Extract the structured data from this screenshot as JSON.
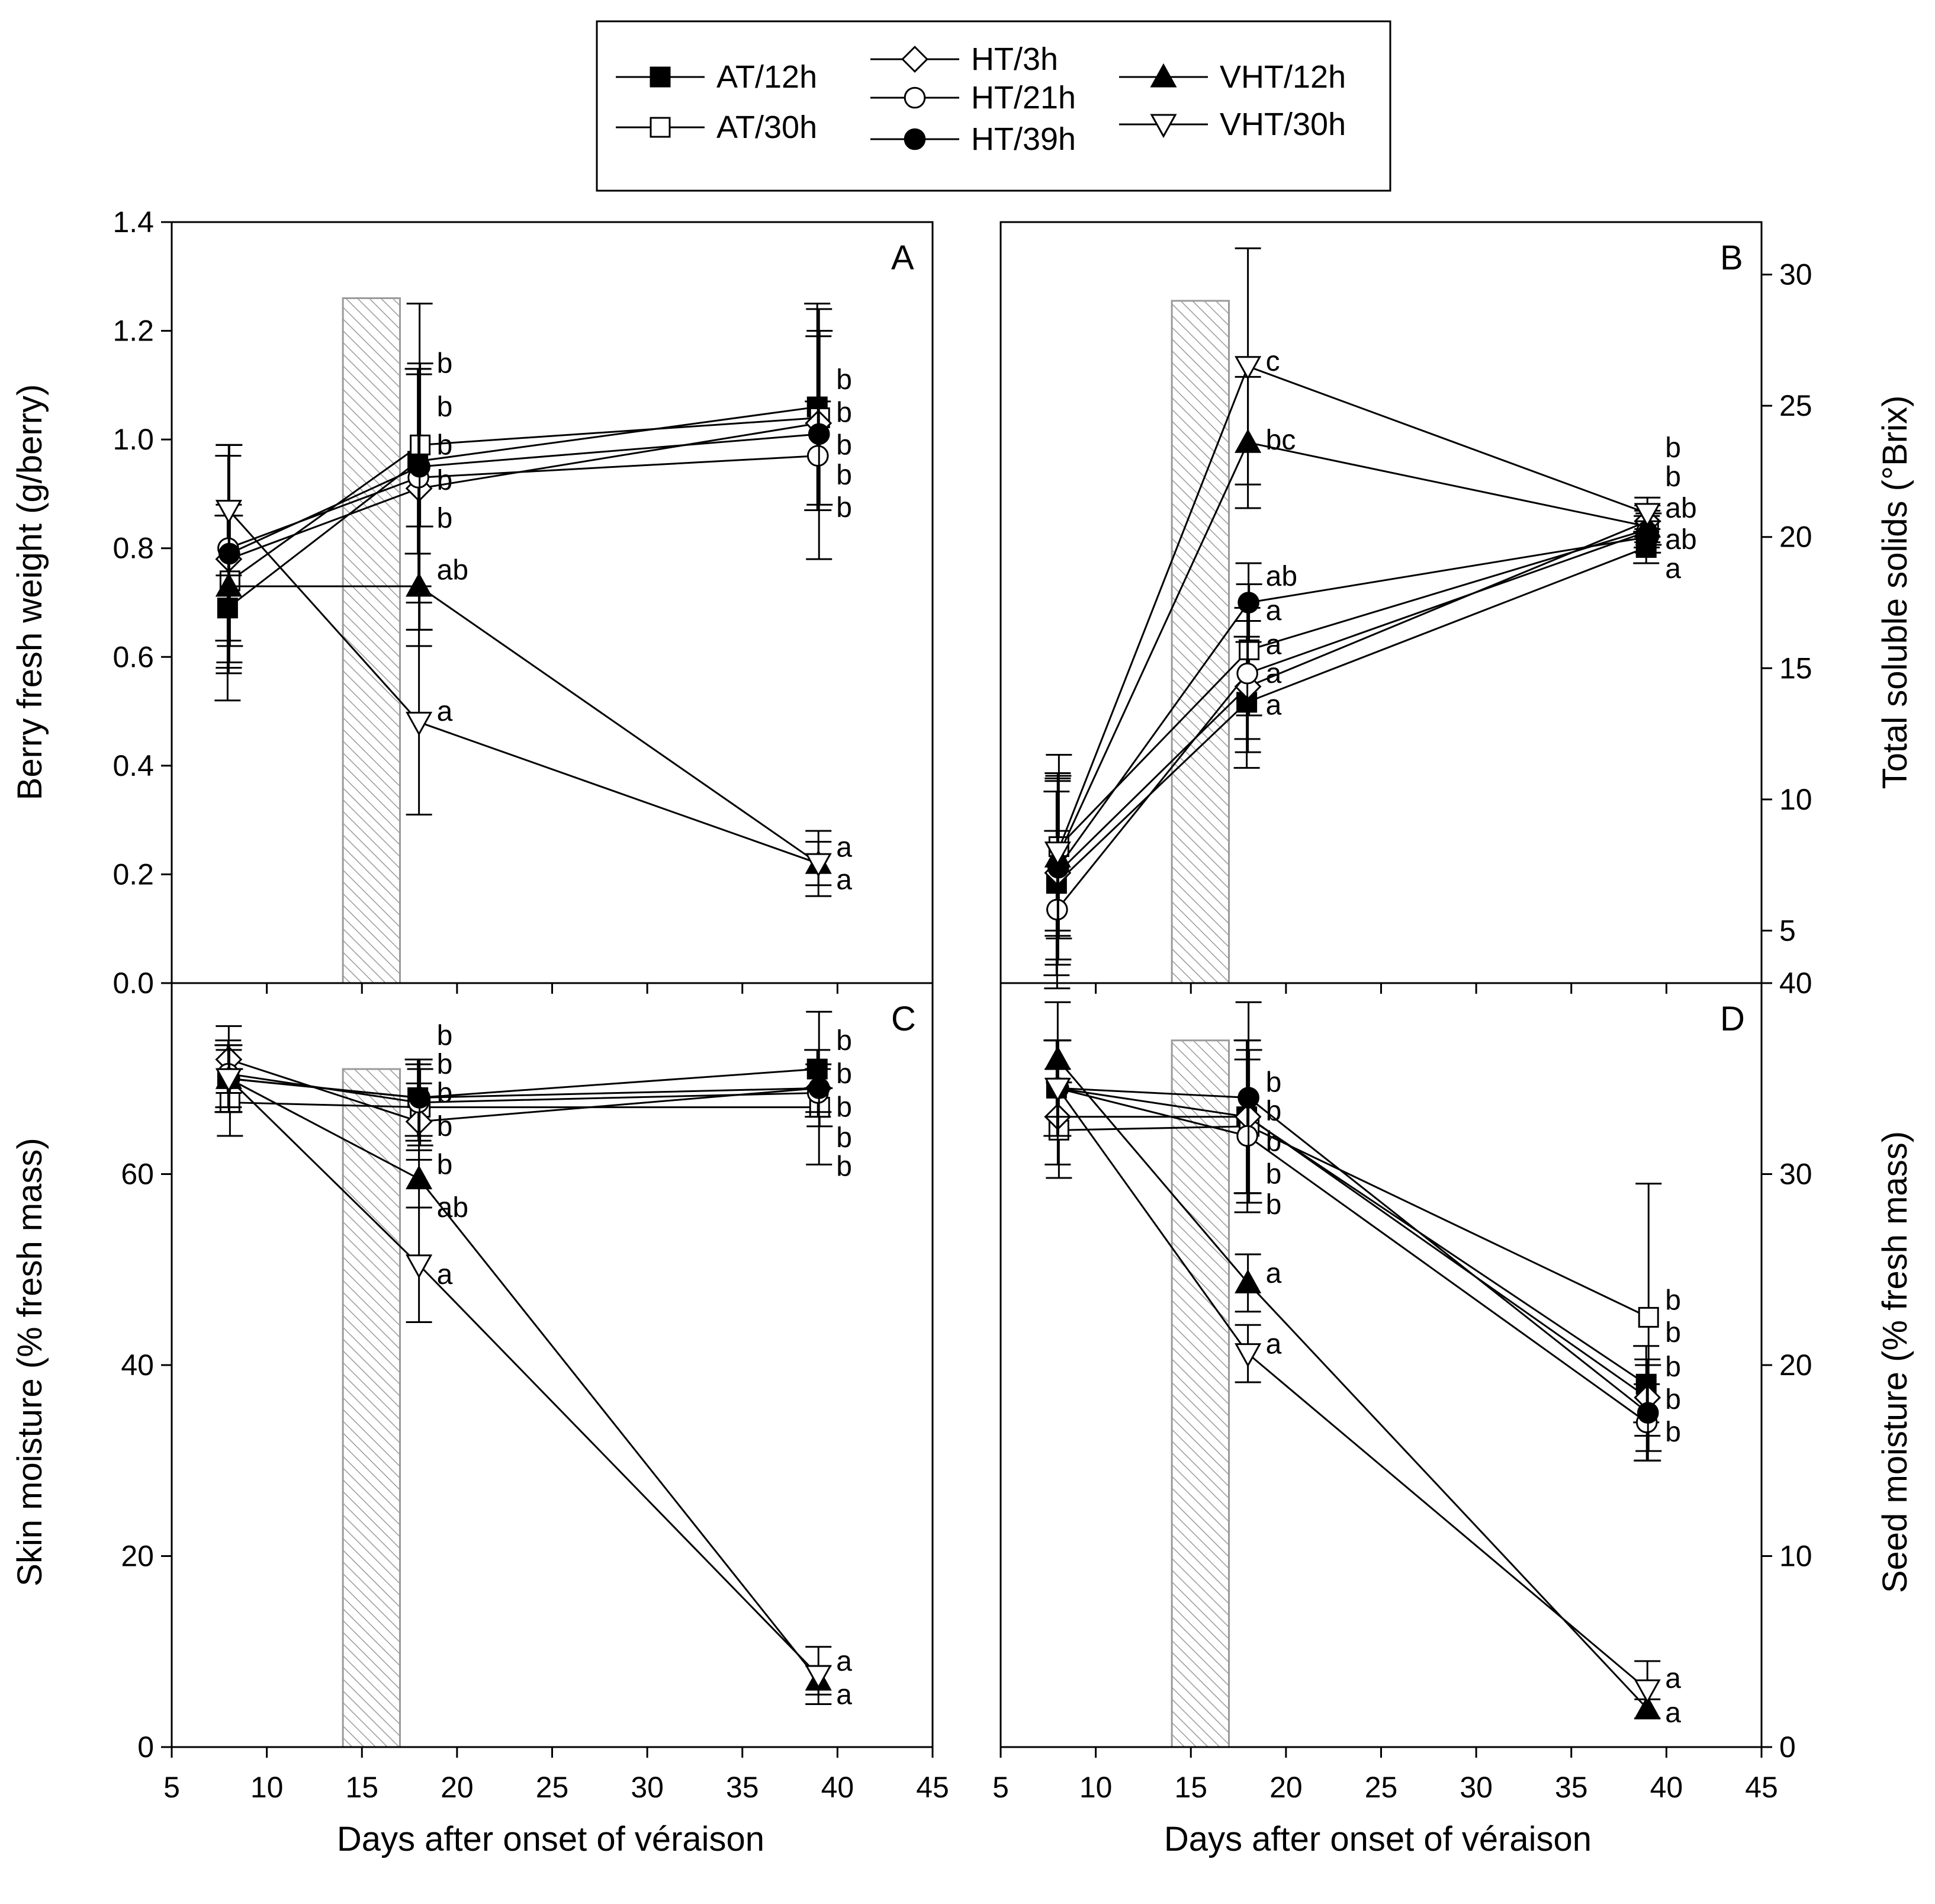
{
  "colors": {
    "ink": "#000000",
    "shade_stroke": "#9a9a9a",
    "background": "#ffffff"
  },
  "legend": [
    {
      "label": "AT/12h",
      "marker": "square",
      "filled": true
    },
    {
      "label": "AT/30h",
      "marker": "square",
      "filled": false
    },
    {
      "label": "HT/3h",
      "marker": "diamond",
      "filled": false
    },
    {
      "label": "HT/21h",
      "marker": "circle",
      "filled": false
    },
    {
      "label": "HT/39h",
      "marker": "circle",
      "filled": true
    },
    {
      "label": "VHT/12h",
      "marker": "triangle-up",
      "filled": true
    },
    {
      "label": "VHT/30h",
      "marker": "triangle-down",
      "filled": false
    }
  ],
  "shared_xlabel": "Days after onset of véraison",
  "chart_data": [
    {
      "panel": "A",
      "type": "line",
      "ylabel": "Berry fresh weight (g/berry)",
      "y_axis_side": "left",
      "xlim": [
        5,
        45
      ],
      "ylim": [
        0,
        1.4
      ],
      "xticks": [],
      "yticks": [
        "0.0",
        "0.2",
        "0.4",
        "0.6",
        "0.8",
        "1.0",
        "1.2",
        "1.4"
      ],
      "treatment_band": {
        "x0": 14,
        "x1": 17,
        "y_top": 1.26
      },
      "x": [
        8,
        18,
        39
      ],
      "series": [
        {
          "name": "AT/12h",
          "values": [
            0.69,
            0.96,
            1.06
          ],
          "err": [
            0.17,
            0.17,
            0.19
          ]
        },
        {
          "name": "AT/30h",
          "values": [
            0.74,
            0.99,
            1.04
          ],
          "err": [
            0.12,
            0.15,
            0.16
          ]
        },
        {
          "name": "HT/3h",
          "values": [
            0.78,
            0.91,
            1.03
          ],
          "err": [
            0.21,
            0.21,
            0.16
          ]
        },
        {
          "name": "HT/21h",
          "values": [
            0.8,
            0.93,
            0.97
          ],
          "err": [
            0.17,
            0.2,
            0.1
          ]
        },
        {
          "name": "HT/39h",
          "values": [
            0.79,
            0.95,
            1.01
          ],
          "err": [
            0.2,
            0.3,
            0.23
          ]
        },
        {
          "name": "VHT/12h",
          "values": [
            0.73,
            0.73,
            0.22
          ],
          "err": [
            0.15,
            0.11,
            0.04
          ]
        },
        {
          "name": "VHT/30h",
          "values": [
            0.87,
            0.48,
            0.22
          ],
          "err": [
            0.12,
            0.17,
            0.06
          ]
        }
      ],
      "annotations": [
        {
          "x": 18,
          "y": 1.14,
          "text": "b"
        },
        {
          "x": 18,
          "y": 1.06,
          "text": "b"
        },
        {
          "x": 18,
          "y": 0.99,
          "text": "b"
        },
        {
          "x": 18,
          "y": 0.925,
          "text": "b"
        },
        {
          "x": 18,
          "y": 0.855,
          "text": "b"
        },
        {
          "x": 18,
          "y": 0.76,
          "text": "ab"
        },
        {
          "x": 18,
          "y": 0.5,
          "text": "a"
        },
        {
          "x": 39,
          "y": 1.11,
          "text": "b"
        },
        {
          "x": 39,
          "y": 1.05,
          "text": "b"
        },
        {
          "x": 39,
          "y": 0.99,
          "text": "b"
        },
        {
          "x": 39,
          "y": 0.935,
          "text": "b"
        },
        {
          "x": 39,
          "y": 0.875,
          "text": "b"
        },
        {
          "x": 39,
          "y": 0.25,
          "text": "a"
        },
        {
          "x": 39,
          "y": 0.19,
          "text": "a"
        }
      ]
    },
    {
      "panel": "B",
      "type": "line",
      "ylabel": "Total soluble solids (°Brix)",
      "y_axis_side": "right",
      "xlim": [
        5,
        45
      ],
      "ylim": [
        3,
        32
      ],
      "xticks": [],
      "yticks": [
        "5",
        "10",
        "15",
        "20",
        "25",
        "30"
      ],
      "treatment_band": {
        "x0": 14,
        "x1": 17,
        "y_top": 29.0
      },
      "x": [
        8,
        18,
        39
      ],
      "series": [
        {
          "name": "AT/12h",
          "values": [
            6.8,
            13.7,
            19.6
          ],
          "err": [
            3.5,
            2.5,
            0.6
          ]
        },
        {
          "name": "AT/30h",
          "values": [
            8.2,
            15.7,
            20.3
          ],
          "err": [
            3.5,
            2.5,
            0.6
          ]
        },
        {
          "name": "HT/3h",
          "values": [
            7.2,
            14.3,
            20.6
          ],
          "err": [
            3.5,
            2.5,
            0.6
          ]
        },
        {
          "name": "HT/21h",
          "values": [
            5.8,
            14.8,
            20.2
          ],
          "err": [
            3.0,
            2.5,
            0.6
          ]
        },
        {
          "name": "HT/39h",
          "values": [
            7.4,
            17.5,
            20.0
          ],
          "err": [
            3.5,
            1.5,
            0.6
          ]
        },
        {
          "name": "VHT/12h",
          "values": [
            7.8,
            23.6,
            20.4
          ],
          "err": [
            3.0,
            2.5,
            0.6
          ]
        },
        {
          "name": "VHT/30h",
          "values": [
            8.0,
            26.5,
            20.9
          ],
          "err": [
            3.0,
            4.5,
            0.6
          ]
        }
      ],
      "annotations": [
        {
          "x": 18,
          "y": 26.7,
          "text": "c"
        },
        {
          "x": 18,
          "y": 23.7,
          "text": "bc"
        },
        {
          "x": 18,
          "y": 18.5,
          "text": "ab"
        },
        {
          "x": 18,
          "y": 17.2,
          "text": "a"
        },
        {
          "x": 18,
          "y": 15.9,
          "text": "a"
        },
        {
          "x": 18,
          "y": 14.8,
          "text": "a"
        },
        {
          "x": 18,
          "y": 13.6,
          "text": "a"
        },
        {
          "x": 39,
          "y": 23.4,
          "text": "b"
        },
        {
          "x": 39,
          "y": 22.3,
          "text": "b"
        },
        {
          "x": 39,
          "y": 21.1,
          "text": "ab"
        },
        {
          "x": 39,
          "y": 19.9,
          "text": "ab"
        },
        {
          "x": 39,
          "y": 18.8,
          "text": "a"
        }
      ]
    },
    {
      "panel": "C",
      "type": "line",
      "ylabel": "Skin moisture (% fresh mass)",
      "y_axis_side": "left",
      "xlim": [
        5,
        45
      ],
      "ylim": [
        0,
        80
      ],
      "xticks": [
        "5",
        "10",
        "15",
        "20",
        "25",
        "30",
        "35",
        "40",
        "45"
      ],
      "yticks": [
        "0",
        "20",
        "40",
        "60"
      ],
      "treatment_band": {
        "x0": 14,
        "x1": 17,
        "y_top": 71.0
      },
      "x": [
        8,
        18,
        39
      ],
      "series": [
        {
          "name": "AT/12h",
          "values": [
            70.0,
            68.0,
            71.0
          ],
          "err": [
            3.5,
            4.0,
            2.0
          ]
        },
        {
          "name": "AT/30h",
          "values": [
            67.5,
            67.0,
            67.0
          ],
          "err": [
            3.5,
            4.0,
            2.0
          ]
        },
        {
          "name": "HT/3h",
          "values": [
            72.0,
            65.5,
            69.0
          ],
          "err": [
            3.5,
            4.0,
            2.5
          ]
        },
        {
          "name": "HT/21h",
          "values": [
            70.5,
            67.5,
            68.5
          ],
          "err": [
            3.5,
            4.0,
            2.5
          ]
        },
        {
          "name": "HT/39h",
          "values": [
            70.0,
            68.0,
            69.0
          ],
          "err": [
            3.5,
            4.0,
            8.0
          ]
        },
        {
          "name": "VHT/12h",
          "values": [
            70.0,
            59.5,
            7.0
          ],
          "err": [
            3.5,
            3.0,
            1.5
          ]
        },
        {
          "name": "VHT/30h",
          "values": [
            70.0,
            50.5,
            7.5
          ],
          "err": [
            3.0,
            6.0,
            3.0
          ]
        }
      ],
      "annotations": [
        {
          "x": 18,
          "y": 74.5,
          "text": "b"
        },
        {
          "x": 18,
          "y": 71.5,
          "text": "b"
        },
        {
          "x": 18,
          "y": 68.5,
          "text": "b"
        },
        {
          "x": 18,
          "y": 65.0,
          "text": "b"
        },
        {
          "x": 18,
          "y": 61.0,
          "text": "b"
        },
        {
          "x": 18,
          "y": 56.5,
          "text": "ab"
        },
        {
          "x": 18,
          "y": 49.5,
          "text": "a"
        },
        {
          "x": 39,
          "y": 74.0,
          "text": "b"
        },
        {
          "x": 39,
          "y": 70.5,
          "text": "b"
        },
        {
          "x": 39,
          "y": 67.0,
          "text": "b"
        },
        {
          "x": 39,
          "y": 63.8,
          "text": "b"
        },
        {
          "x": 39,
          "y": 60.8,
          "text": "b"
        },
        {
          "x": 39,
          "y": 9.0,
          "text": "a"
        },
        {
          "x": 39,
          "y": 5.5,
          "text": "a"
        }
      ]
    },
    {
      "panel": "D",
      "type": "line",
      "ylabel": "Seed moisture (% fresh mass)",
      "y_axis_side": "right",
      "xlim": [
        5,
        45
      ],
      "ylim": [
        0,
        40
      ],
      "xticks": [
        "5",
        "10",
        "15",
        "20",
        "25",
        "30",
        "35",
        "40",
        "45"
      ],
      "yticks": [
        "0",
        "10",
        "20",
        "30",
        "40"
      ],
      "treatment_band": {
        "x0": 14,
        "x1": 17,
        "y_top": 37.0
      },
      "x": [
        8,
        18,
        39
      ],
      "series": [
        {
          "name": "AT/12h",
          "values": [
            34.5,
            33.0,
            19.0
          ],
          "err": [
            2.5,
            4.0,
            2.0
          ]
        },
        {
          "name": "AT/30h",
          "values": [
            32.3,
            32.5,
            22.5
          ],
          "err": [
            2.5,
            4.0,
            7.0
          ]
        },
        {
          "name": "HT/3h",
          "values": [
            33.0,
            33.0,
            18.3
          ],
          "err": [
            2.5,
            4.0,
            2.0
          ]
        },
        {
          "name": "HT/21h",
          "values": [
            34.5,
            32.0,
            17.0
          ],
          "err": [
            2.5,
            4.0,
            2.0
          ]
        },
        {
          "name": "HT/39h",
          "values": [
            34.5,
            34.0,
            17.5
          ],
          "err": [
            2.5,
            5.0,
            2.5
          ]
        },
        {
          "name": "VHT/12h",
          "values": [
            36.0,
            24.3,
            2.0
          ],
          "err": [
            3.0,
            1.5,
            0.5
          ]
        },
        {
          "name": "VHT/30h",
          "values": [
            34.5,
            20.6,
            3.0
          ],
          "err": [
            2.5,
            1.5,
            1.5
          ]
        }
      ],
      "annotations": [
        {
          "x": 18,
          "y": 34.8,
          "text": "b"
        },
        {
          "x": 18,
          "y": 33.3,
          "text": "b"
        },
        {
          "x": 18,
          "y": 31.7,
          "text": "b"
        },
        {
          "x": 18,
          "y": 30.0,
          "text": "b"
        },
        {
          "x": 18,
          "y": 28.4,
          "text": "b"
        },
        {
          "x": 18,
          "y": 24.8,
          "text": "a"
        },
        {
          "x": 18,
          "y": 21.1,
          "text": "a"
        },
        {
          "x": 39,
          "y": 23.4,
          "text": "b"
        },
        {
          "x": 39,
          "y": 21.7,
          "text": "b"
        },
        {
          "x": 39,
          "y": 19.9,
          "text": "b"
        },
        {
          "x": 39,
          "y": 18.2,
          "text": "b"
        },
        {
          "x": 39,
          "y": 16.5,
          "text": "b"
        },
        {
          "x": 39,
          "y": 3.6,
          "text": "a"
        },
        {
          "x": 39,
          "y": 1.8,
          "text": "a"
        }
      ]
    }
  ]
}
